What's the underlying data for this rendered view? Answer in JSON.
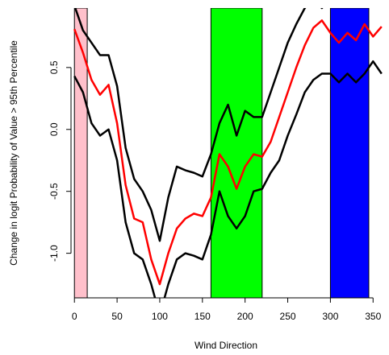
{
  "chart_data": {
    "type": "line",
    "x_label": "Wind Direction",
    "y_label": "Change in logit Probability of Value > 95th Percentile",
    "x": [
      0,
      10,
      20,
      30,
      40,
      50,
      60,
      70,
      80,
      90,
      100,
      110,
      120,
      130,
      140,
      150,
      160,
      170,
      180,
      190,
      200,
      210,
      220,
      230,
      240,
      250,
      260,
      270,
      280,
      290,
      300,
      310,
      320,
      330,
      340,
      350,
      360
    ],
    "series": [
      {
        "color": "#000000",
        "values": [
          1.0,
          0.8,
          0.7,
          0.6,
          0.6,
          0.35,
          -0.15,
          -0.4,
          -0.5,
          -0.65,
          -0.9,
          -0.55,
          -0.3,
          -0.33,
          -0.35,
          -0.38,
          -0.2,
          0.05,
          0.2,
          -0.05,
          0.15,
          0.1,
          0.1,
          0.3,
          0.5,
          0.7,
          0.85,
          0.98,
          1.05,
          0.98,
          1.05,
          1.1,
          1.05,
          1.0,
          1.1,
          1.05,
          1.0
        ]
      },
      {
        "color": "#ff0000",
        "values": [
          0.81,
          0.62,
          0.4,
          0.28,
          0.36,
          0.05,
          -0.45,
          -0.72,
          -0.75,
          -1.05,
          -1.25,
          -1.0,
          -0.8,
          -0.72,
          -0.68,
          -0.7,
          -0.55,
          -0.2,
          -0.3,
          -0.48,
          -0.3,
          -0.2,
          -0.22,
          -0.1,
          0.1,
          0.3,
          0.5,
          0.68,
          0.82,
          0.88,
          0.78,
          0.7,
          0.78,
          0.72,
          0.85,
          0.75,
          0.83
        ]
      },
      {
        "color": "#000000",
        "values": [
          0.43,
          0.3,
          0.05,
          -0.05,
          0.0,
          -0.25,
          -0.75,
          -1.0,
          -1.05,
          -1.25,
          -1.5,
          -1.25,
          -1.05,
          -1.0,
          -1.02,
          -1.05,
          -0.85,
          -0.5,
          -0.7,
          -0.8,
          -0.7,
          -0.5,
          -0.48,
          -0.35,
          -0.25,
          -0.05,
          0.12,
          0.3,
          0.4,
          0.45,
          0.45,
          0.38,
          0.45,
          0.38,
          0.45,
          0.55,
          0.45
        ]
      }
    ],
    "regions": [
      {
        "xlim": [
          0,
          15
        ],
        "color": "#ffc0cb"
      },
      {
        "xlim": [
          160,
          220
        ],
        "color": "#00ff00"
      },
      {
        "xlim": [
          300,
          345
        ],
        "color": "#0000ff"
      }
    ],
    "xlim": [
      -4,
      363
    ],
    "ylim": [
      -1.36,
      0.98
    ],
    "xticks": [
      0,
      50,
      100,
      150,
      200,
      250,
      300,
      350
    ],
    "yticks": [
      {
        "value": -1,
        "label": "-1.0"
      },
      {
        "value": -0.5,
        "label": "-0.5"
      },
      {
        "value": 0,
        "label": "0.0"
      },
      {
        "value": 0.5,
        "label": "0.5"
      }
    ]
  }
}
